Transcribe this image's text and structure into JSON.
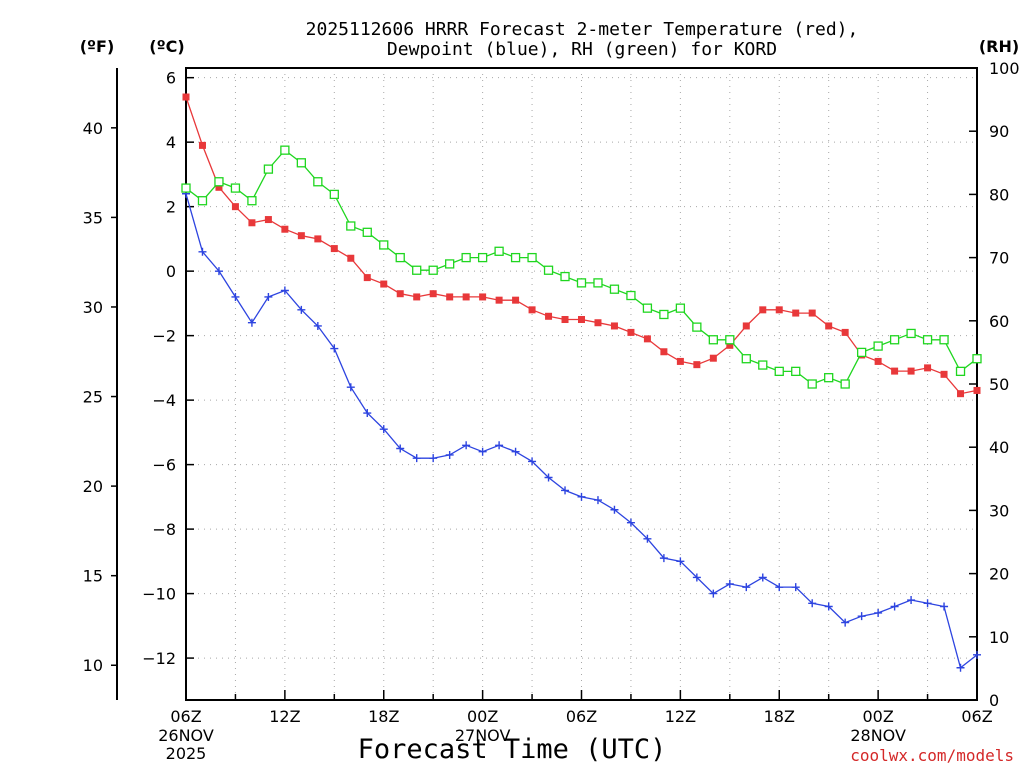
{
  "colors": {
    "temperature": "#e8383a",
    "dewpoint": "#2d44e0",
    "rh": "#1fd61f",
    "credit": "#d42828"
  },
  "chart_data": {
    "type": "line",
    "title_line1": "2025112606 HRRR Forecast 2-meter Temperature (red),",
    "title_line2": "Dewpoint (blue), RH (green) for KORD",
    "xlabel": "Forecast Time (UTC)",
    "credit": "coolwx.com/models",
    "units": {
      "left_f": "(ºF)",
      "left_c": "(ºC)",
      "right_rh": "(RH)"
    },
    "x_range_hours": [
      0,
      48
    ],
    "x_tick_labels": [
      {
        "hour": 0,
        "label": "06Z"
      },
      {
        "hour": 6,
        "label": "12Z"
      },
      {
        "hour": 12,
        "label": "18Z"
      },
      {
        "hour": 18,
        "label": "00Z"
      },
      {
        "hour": 24,
        "label": "06Z"
      },
      {
        "hour": 30,
        "label": "12Z"
      },
      {
        "hour": 36,
        "label": "18Z"
      },
      {
        "hour": 42,
        "label": "00Z"
      },
      {
        "hour": 48,
        "label": "06Z"
      }
    ],
    "date_labels": [
      {
        "hour": 0,
        "lines": [
          "26NOV",
          "2025"
        ]
      },
      {
        "hour": 18,
        "lines": [
          "27NOV"
        ]
      },
      {
        "hour": 42,
        "lines": [
          "28NOV"
        ]
      }
    ],
    "celsius_axis": {
      "range": [
        -13.3,
        6.3
      ],
      "ticks": [
        6,
        4,
        2,
        0,
        -2,
        -4,
        -6,
        -8,
        -10,
        -12
      ],
      "tick_labels": [
        "6",
        "4",
        "2",
        "0",
        "−2",
        "−4",
        "−6",
        "−8",
        "−10",
        "−12"
      ]
    },
    "fahrenheit_axis": {
      "ticks": [
        40,
        35,
        30,
        25,
        20,
        15,
        10
      ],
      "tick_labels": [
        "40",
        "35",
        "30",
        "25",
        "20",
        "15",
        "10"
      ]
    },
    "rh_axis": {
      "range": [
        0,
        100
      ],
      "ticks": [
        0,
        10,
        20,
        30,
        40,
        50,
        60,
        70,
        80,
        90,
        100
      ],
      "tick_labels": [
        "0",
        "10",
        "20",
        "30",
        "40",
        "50",
        "60",
        "70",
        "80",
        "90",
        "100"
      ]
    },
    "series": [
      {
        "name": "Temperature (red)",
        "unit": "C",
        "marker": "filled-square",
        "values": [
          5.4,
          3.9,
          2.6,
          2.0,
          1.5,
          1.6,
          1.3,
          1.1,
          1.0,
          0.7,
          0.4,
          -0.2,
          -0.4,
          -0.7,
          -0.8,
          -0.7,
          -0.8,
          -0.8,
          -0.8,
          -0.9,
          -0.9,
          -1.2,
          -1.4,
          -1.5,
          -1.5,
          -1.6,
          -1.7,
          -1.9,
          -2.1,
          -2.5,
          -2.8,
          -2.9,
          -2.7,
          -2.3,
          -1.7,
          -1.2,
          -1.2,
          -1.3,
          -1.3,
          -1.7,
          -1.9,
          -2.6,
          -2.8,
          -3.1,
          -3.1,
          -3.0,
          -3.2,
          -3.8,
          -3.7
        ]
      },
      {
        "name": "Dewpoint (blue)",
        "unit": "C",
        "marker": "plus",
        "values": [
          2.4,
          0.6,
          0.0,
          -0.8,
          -1.6,
          -0.8,
          -0.6,
          -1.2,
          -1.7,
          -2.4,
          -3.6,
          -4.4,
          -4.9,
          -5.5,
          -5.8,
          -5.8,
          -5.7,
          -5.4,
          -5.6,
          -5.4,
          -5.6,
          -5.9,
          -6.4,
          -6.8,
          -7.0,
          -7.1,
          -7.4,
          -7.8,
          -8.3,
          -8.9,
          -9.0,
          -9.5,
          -10.0,
          -9.7,
          -9.8,
          -9.5,
          -9.8,
          -9.8,
          -10.3,
          -10.4,
          -10.9,
          -10.7,
          -10.6,
          -10.4,
          -10.2,
          -10.3,
          -10.4,
          -12.3,
          -11.9
        ]
      },
      {
        "name": "RH (green)",
        "unit": "%",
        "marker": "open-square",
        "values": [
          81,
          79,
          82,
          81,
          79,
          84,
          87,
          85,
          82,
          80,
          75,
          74,
          72,
          70,
          68,
          68,
          69,
          70,
          70,
          71,
          70,
          70,
          68,
          67,
          66,
          66,
          65,
          64,
          62,
          61,
          62,
          59,
          57,
          57,
          54,
          53,
          52,
          52,
          50,
          51,
          50,
          55,
          56,
          57,
          58,
          57,
          57,
          52,
          54
        ]
      }
    ]
  }
}
